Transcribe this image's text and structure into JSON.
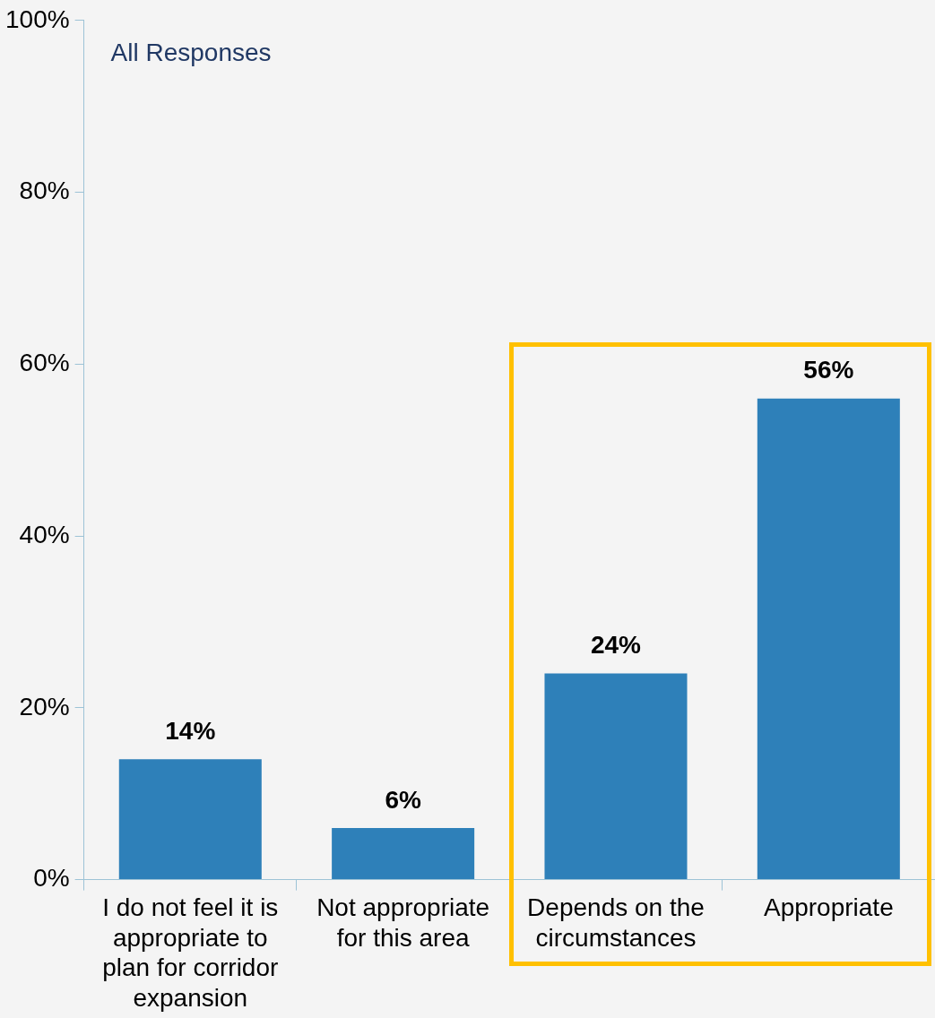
{
  "chart_data": {
    "type": "bar",
    "categories": [
      "I do not feel it is appropriate to plan for corridor expansion",
      "Not appropriate for this area",
      "Depends on the circumstances",
      "Appropriate"
    ],
    "values": [
      14,
      6,
      24,
      56
    ],
    "value_labels": [
      "14%",
      "6%",
      "24%",
      "56%"
    ],
    "color": "#2e80b9",
    "ylim": [
      0,
      100
    ],
    "yticks": [
      {
        "value": 0,
        "label": "0%"
      },
      {
        "value": 20,
        "label": "20%"
      },
      {
        "value": 40,
        "label": "40%"
      },
      {
        "value": 60,
        "label": "60%"
      },
      {
        "value": 80,
        "label": "80%"
      },
      {
        "value": 100,
        "label": "100%"
      }
    ],
    "annotations": [
      "All Responses"
    ],
    "legend": false
  }
}
